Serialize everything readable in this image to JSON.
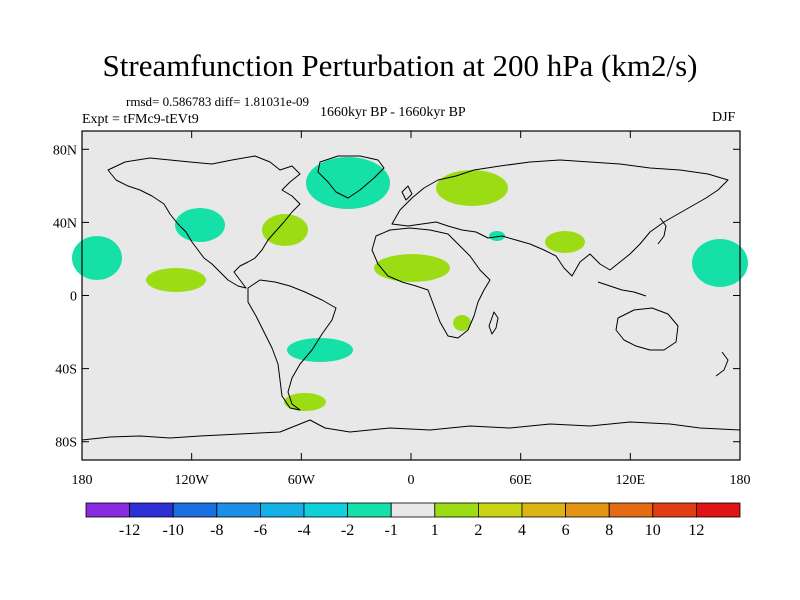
{
  "title": "Streamfunction Perturbation at 200 hPa (km2/s)",
  "stats": "rmsd= 0.586783 diff= 1.81031e-09",
  "experiment": "Expt = tFMc9-tEVt9",
  "period": "1660kyr BP - 1660kyr BP",
  "season": "DJF",
  "y_ticks": [
    "80N",
    "40N",
    "0",
    "40S",
    "80S"
  ],
  "x_ticks": [
    "180",
    "120W",
    "60W",
    "0",
    "60E",
    "120E",
    "180"
  ],
  "colorbar": {
    "colors": [
      "#8a2be2",
      "#2f2fd6",
      "#1c6fe0",
      "#1e8fe6",
      "#14b0e6",
      "#10d0dc",
      "#14e0a8",
      "#e8e8e8",
      "#9cdc14",
      "#c8d414",
      "#dcb414",
      "#e49414",
      "#e46a14",
      "#e23e14",
      "#e01414"
    ],
    "labels": [
      "-12",
      "-10",
      "-8",
      "-6",
      "-4",
      "-2",
      "-1",
      "1",
      "2",
      "4",
      "6",
      "8",
      "10",
      "12"
    ]
  },
  "colors": {
    "ocean": "#e8e8e8",
    "negative": "#14e0a8",
    "positive": "#9cdc14"
  }
}
